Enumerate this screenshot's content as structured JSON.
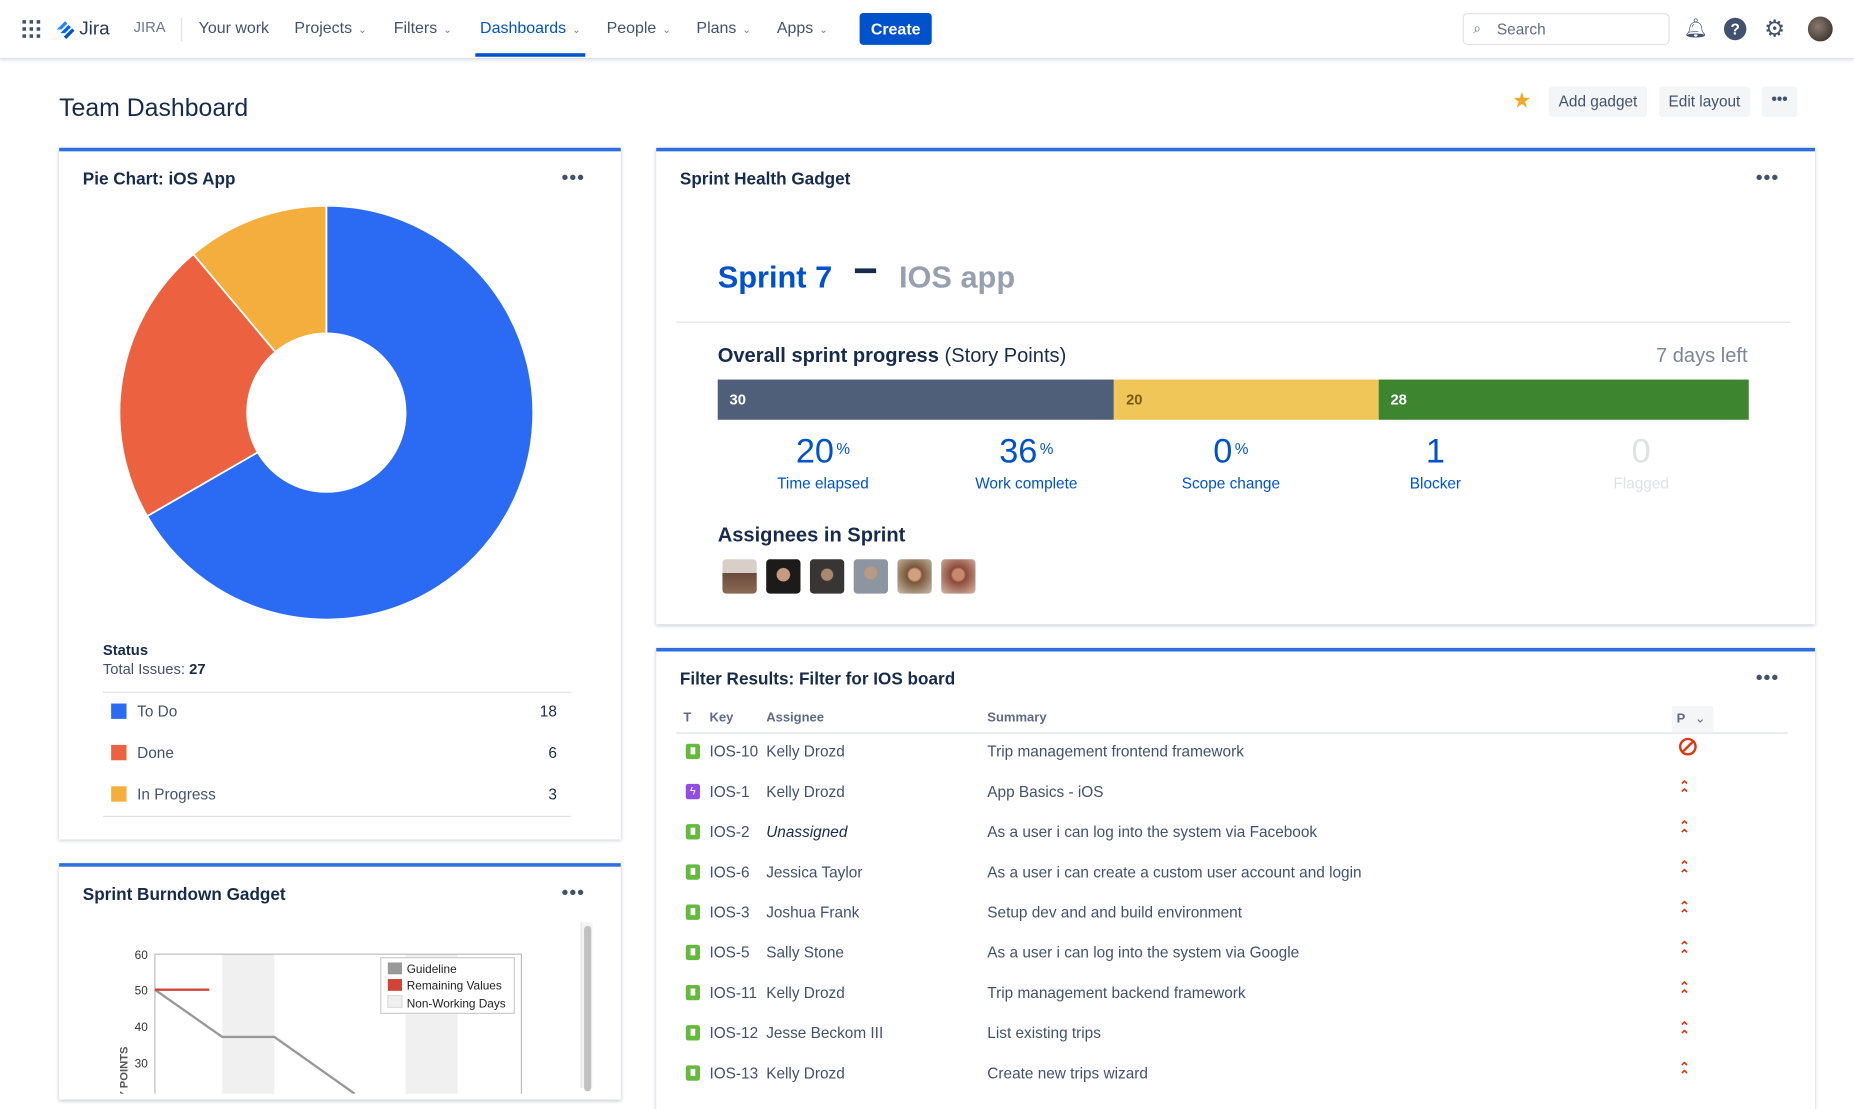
{
  "nav": {
    "product": "Jira",
    "site": "JIRA",
    "items": [
      {
        "label": "Your work",
        "dropdown": false
      },
      {
        "label": "Projects",
        "dropdown": true
      },
      {
        "label": "Filters",
        "dropdown": true
      },
      {
        "label": "Dashboards",
        "dropdown": true,
        "active": true
      },
      {
        "label": "People",
        "dropdown": true
      },
      {
        "label": "Plans",
        "dropdown": true
      },
      {
        "label": "Apps",
        "dropdown": true
      }
    ],
    "create_label": "Create",
    "search_placeholder": "Search"
  },
  "page": {
    "title": "Team Dashboard",
    "add_gadget": "Add gadget",
    "edit_layout": "Edit layout",
    "starred": true
  },
  "pie_gadget": {
    "title": "Pie Chart: iOS App",
    "status_label": "Status",
    "total_label": "Total Issues:",
    "total": "27",
    "chart_data": {
      "type": "pie",
      "categories": [
        "To Do",
        "Done",
        "In Progress"
      ],
      "values": [
        18,
        6,
        3
      ],
      "colors": [
        "#2B6BF3",
        "#EC6240",
        "#F4AE3D"
      ]
    },
    "legend": [
      {
        "label": "To Do",
        "count": "18",
        "color": "#2B6BF3"
      },
      {
        "label": "Done",
        "count": "6",
        "color": "#EC6240"
      },
      {
        "label": "In Progress",
        "count": "3",
        "color": "#F4AE3D"
      }
    ]
  },
  "burndown_gadget": {
    "title": "Sprint Burndown Gadget",
    "chart_data": {
      "type": "line",
      "ylabel": "STORY POINTS",
      "yticks": [
        "60",
        "50",
        "40",
        "30"
      ],
      "legend": [
        "Guideline",
        "Remaining Values",
        "Non-Working Days"
      ],
      "colors": {
        "guideline": "#999999",
        "remaining": "#D04437",
        "non_working": "#F0F0F0"
      }
    }
  },
  "sprint_health": {
    "title": "Sprint Health Gadget",
    "sprint_name": "Sprint 7",
    "project": "IOS app",
    "progress_label": "Overall sprint progress",
    "progress_unit": "(Story Points)",
    "days_left": "7 days left",
    "segments": [
      {
        "value": 30,
        "label": "30",
        "color": "#505F79"
      },
      {
        "value": 20,
        "label": "20",
        "color": "#F0C659"
      },
      {
        "value": 28,
        "label": "28",
        "color": "#3E8530"
      }
    ],
    "stats": [
      {
        "value": "20",
        "unit": "%",
        "label": "Time elapsed"
      },
      {
        "value": "36",
        "unit": "%",
        "label": "Work complete"
      },
      {
        "value": "0",
        "unit": "%",
        "label": "Scope change"
      },
      {
        "value": "1",
        "unit": "",
        "label": "Blocker"
      },
      {
        "value": "0",
        "unit": "",
        "label": "Flagged"
      }
    ],
    "assignees_label": "Assignees in Sprint"
  },
  "filter_gadget": {
    "title": "Filter Results: Filter for IOS board",
    "columns": [
      "T",
      "Key",
      "Assignee",
      "Summary",
      "P"
    ],
    "rows": [
      {
        "type": "story",
        "key": "IOS-10",
        "assignee": "Kelly Drozd",
        "summary": "Trip management frontend framework",
        "priority": "blocker"
      },
      {
        "type": "epic",
        "key": "IOS-1",
        "assignee": "Kelly Drozd",
        "summary": "App Basics - iOS",
        "priority": "highest"
      },
      {
        "type": "story",
        "key": "IOS-2",
        "assignee": "Unassigned",
        "summary": "As a user i can log into the system via Facebook",
        "priority": "highest"
      },
      {
        "type": "story",
        "key": "IOS-6",
        "assignee": "Jessica Taylor",
        "summary": "As a user i can create a custom user account and login",
        "priority": "highest"
      },
      {
        "type": "story",
        "key": "IOS-3",
        "assignee": "Joshua Frank",
        "summary": "Setup dev and and build environment",
        "priority": "highest"
      },
      {
        "type": "story",
        "key": "IOS-5",
        "assignee": "Sally Stone",
        "summary": "As a user i can log into the system via Google",
        "priority": "highest"
      },
      {
        "type": "story",
        "key": "IOS-11",
        "assignee": "Kelly Drozd",
        "summary": "Trip management backend framework",
        "priority": "highest"
      },
      {
        "type": "story",
        "key": "IOS-12",
        "assignee": "Jesse Beckom III",
        "summary": "List existing trips",
        "priority": "highest"
      },
      {
        "type": "story",
        "key": "IOS-13",
        "assignee": "Kelly Drozd",
        "summary": "Create new trips wizard",
        "priority": "highest"
      }
    ]
  }
}
